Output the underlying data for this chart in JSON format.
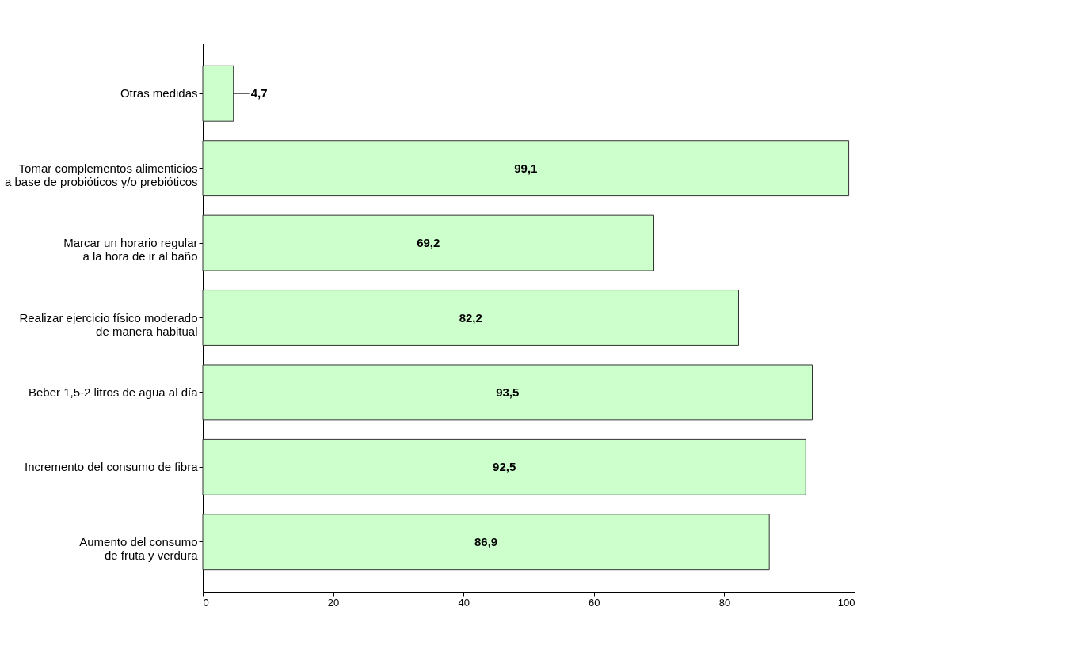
{
  "chart_data": {
    "type": "bar",
    "orientation": "horizontal",
    "categories": [
      "Otras medidas",
      "Tomar complementos alimenticios\na base de probióticos y/o prebióticos",
      "Marcar un horario regular\na la hora de ir al baño",
      "Realizar ejercicio físico moderado\nde manera habitual",
      "Beber 1,5-2 litros de agua al día",
      "Incremento del consumo de fibra",
      "Aumento del consumo\nde fruta y verdura"
    ],
    "values": [
      4.7,
      99.1,
      69.2,
      82.2,
      93.5,
      92.5,
      86.9
    ],
    "value_labels": [
      "4,7",
      "99,1",
      "69,2",
      "82,2",
      "93,5",
      "92,5",
      "86,9"
    ],
    "color": "#ccffcc",
    "xlim": [
      0,
      100
    ],
    "xticks": [
      0,
      20,
      40,
      60,
      80,
      100
    ],
    "grid": false
  }
}
